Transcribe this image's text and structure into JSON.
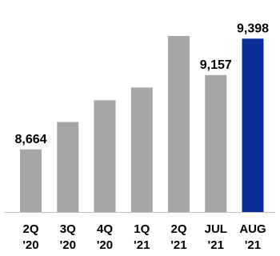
{
  "chart_data": {
    "type": "bar",
    "categories": [
      [
        "2Q",
        "'20"
      ],
      [
        "3Q",
        "'20"
      ],
      [
        "4Q",
        "'20"
      ],
      [
        "1Q",
        "'21"
      ],
      [
        "2Q",
        "'21"
      ],
      [
        "JUL",
        "'21"
      ],
      [
        "AUG",
        "'21"
      ]
    ],
    "values": [
      8664,
      8846,
      8990,
      9074,
      9415,
      9157,
      9398
    ],
    "data_labels": [
      "8,664",
      "",
      "",
      "",
      "",
      "9,157",
      "9,398"
    ],
    "ylim": [
      8250,
      9500
    ],
    "colors": {
      "default": "#a6a6a6",
      "highlight": "#0a2f9a"
    },
    "highlight_index": 6,
    "grid": false,
    "legend": "none"
  }
}
